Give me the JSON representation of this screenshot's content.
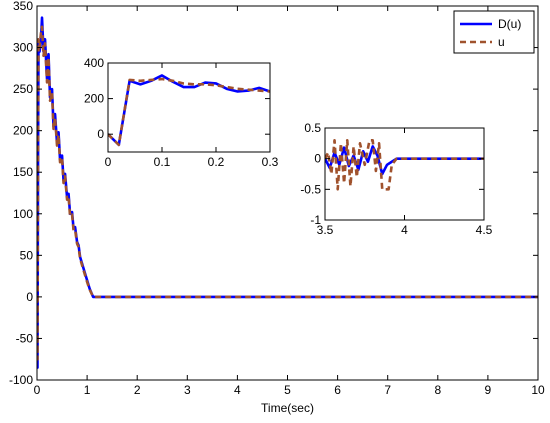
{
  "chart_data": [
    {
      "type": "line",
      "xlabel": "Time(sec)",
      "ylabel": "",
      "xlim": [
        0,
        10
      ],
      "ylim": [
        -100,
        350
      ],
      "xticks": [
        0,
        1,
        2,
        3,
        4,
        5,
        6,
        7,
        8,
        9,
        10
      ],
      "yticks": [
        -100,
        -50,
        0,
        50,
        100,
        150,
        200,
        250,
        300,
        350
      ],
      "grid": false,
      "legend": "top-right",
      "series": [
        {
          "name": "D(u)",
          "color": "#0000ff",
          "style": "solid",
          "points": [
            [
              0,
              0
            ],
            [
              0.01,
              -85
            ],
            [
              0.02,
              150
            ],
            [
              0.03,
              305
            ],
            [
              0.05,
              295
            ],
            [
              0.08,
              310
            ],
            [
              0.1,
              336
            ],
            [
              0.13,
              295
            ],
            [
              0.16,
              310
            ],
            [
              0.2,
              262
            ],
            [
              0.23,
              292
            ],
            [
              0.26,
              240
            ],
            [
              0.3,
              250
            ],
            [
              0.33,
              205
            ],
            [
              0.36,
              220
            ],
            [
              0.4,
              185
            ],
            [
              0.43,
              198
            ],
            [
              0.46,
              165
            ],
            [
              0.5,
              170
            ],
            [
              0.53,
              140
            ],
            [
              0.56,
              148
            ],
            [
              0.6,
              120
            ],
            [
              0.63,
              124
            ],
            [
              0.66,
              100
            ],
            [
              0.7,
              102
            ],
            [
              0.73,
              82
            ],
            [
              0.76,
              84
            ],
            [
              0.8,
              66
            ],
            [
              0.83,
              62
            ],
            [
              0.86,
              48
            ],
            [
              0.9,
              40
            ],
            [
              0.95,
              30
            ],
            [
              1.0,
              20
            ],
            [
              1.05,
              10
            ],
            [
              1.12,
              0
            ],
            [
              10,
              0
            ]
          ]
        },
        {
          "name": "u",
          "color": "#a0522d",
          "style": "dashed",
          "points": [
            [
              0,
              0
            ],
            [
              0.01,
              -75
            ],
            [
              0.02,
              160
            ],
            [
              0.03,
              310
            ],
            [
              0.05,
              300
            ],
            [
              0.08,
              318
            ],
            [
              0.1,
              325
            ],
            [
              0.13,
              290
            ],
            [
              0.16,
              305
            ],
            [
              0.2,
              258
            ],
            [
              0.23,
              288
            ],
            [
              0.26,
              236
            ],
            [
              0.3,
              246
            ],
            [
              0.33,
              202
            ],
            [
              0.36,
              216
            ],
            [
              0.4,
              182
            ],
            [
              0.43,
              195
            ],
            [
              0.46,
              162
            ],
            [
              0.5,
              167
            ],
            [
              0.53,
              137
            ],
            [
              0.56,
              145
            ],
            [
              0.6,
              117
            ],
            [
              0.63,
              121
            ],
            [
              0.66,
              97
            ],
            [
              0.7,
              99
            ],
            [
              0.73,
              80
            ],
            [
              0.76,
              81
            ],
            [
              0.8,
              64
            ],
            [
              0.83,
              60
            ],
            [
              0.86,
              46
            ],
            [
              0.9,
              38
            ],
            [
              0.95,
              28
            ],
            [
              1.0,
              18
            ],
            [
              1.05,
              9
            ],
            [
              1.12,
              0
            ],
            [
              10,
              0
            ]
          ]
        }
      ]
    },
    {
      "type": "line",
      "xlim": [
        0,
        0.3
      ],
      "ylim": [
        -100,
        400
      ],
      "xticks": [
        0,
        0.1,
        0.2,
        0.3
      ],
      "yticks": [
        0,
        200,
        400
      ],
      "series": [
        {
          "name": "D(u)",
          "color": "#0000ff",
          "style": "solid",
          "points": [
            [
              0,
              0
            ],
            [
              0.02,
              -60
            ],
            [
              0.04,
              300
            ],
            [
              0.06,
              280
            ],
            [
              0.08,
              300
            ],
            [
              0.1,
              330
            ],
            [
              0.12,
              295
            ],
            [
              0.14,
              265
            ],
            [
              0.16,
              265
            ],
            [
              0.18,
              290
            ],
            [
              0.2,
              285
            ],
            [
              0.22,
              255
            ],
            [
              0.24,
              240
            ],
            [
              0.26,
              245
            ],
            [
              0.28,
              260
            ],
            [
              0.3,
              240
            ]
          ]
        },
        {
          "name": "u",
          "color": "#a0522d",
          "style": "dashed",
          "points": [
            [
              0,
              0
            ],
            [
              0.02,
              -60
            ],
            [
              0.04,
              305
            ],
            [
              0.06,
              300
            ],
            [
              0.08,
              305
            ],
            [
              0.1,
              310
            ],
            [
              0.12,
              300
            ],
            [
              0.14,
              285
            ],
            [
              0.16,
              280
            ],
            [
              0.18,
              280
            ],
            [
              0.2,
              275
            ],
            [
              0.22,
              265
            ],
            [
              0.24,
              255
            ],
            [
              0.26,
              250
            ],
            [
              0.28,
              245
            ],
            [
              0.3,
              240
            ]
          ]
        }
      ]
    },
    {
      "type": "line",
      "xlim": [
        3.5,
        4.5
      ],
      "ylim": [
        -1,
        0.5
      ],
      "xticks": [
        3.5,
        4,
        4.5
      ],
      "yticks": [
        -1,
        -0.5,
        0,
        0.5
      ],
      "series": [
        {
          "name": "D(u)",
          "color": "#0000ff",
          "style": "solid",
          "points": [
            [
              3.5,
              0
            ],
            [
              3.53,
              -0.15
            ],
            [
              3.56,
              0.1
            ],
            [
              3.59,
              -0.1
            ],
            [
              3.62,
              0.18
            ],
            [
              3.65,
              -0.12
            ],
            [
              3.68,
              0.05
            ],
            [
              3.71,
              -0.18
            ],
            [
              3.74,
              0.12
            ],
            [
              3.77,
              -0.05
            ],
            [
              3.8,
              0.2
            ],
            [
              3.83,
              0.05
            ],
            [
              3.86,
              -0.25
            ],
            [
              3.89,
              -0.1
            ],
            [
              3.92,
              -0.05
            ],
            [
              3.95,
              0
            ],
            [
              4.5,
              0
            ]
          ]
        },
        {
          "name": "u",
          "color": "#a0522d",
          "style": "dashed",
          "points": [
            [
              3.5,
              0
            ],
            [
              3.52,
              0.1
            ],
            [
              3.54,
              -0.25
            ],
            [
              3.56,
              0.3
            ],
            [
              3.58,
              -0.5
            ],
            [
              3.6,
              0.25
            ],
            [
              3.62,
              -0.4
            ],
            [
              3.64,
              0.3
            ],
            [
              3.66,
              -0.45
            ],
            [
              3.68,
              0.2
            ],
            [
              3.7,
              -0.3
            ],
            [
              3.72,
              0.25
            ],
            [
              3.75,
              -0.1
            ],
            [
              3.78,
              0.3
            ],
            [
              3.8,
              0.3
            ],
            [
              3.82,
              -0.2
            ],
            [
              3.84,
              0.25
            ],
            [
              3.86,
              -0.5
            ],
            [
              3.88,
              -0.5
            ],
            [
              3.9,
              -0.5
            ],
            [
              3.92,
              -0.1
            ],
            [
              3.95,
              0
            ],
            [
              4.5,
              0
            ]
          ]
        }
      ]
    }
  ]
}
